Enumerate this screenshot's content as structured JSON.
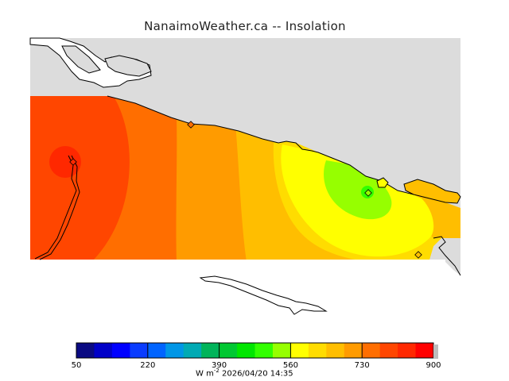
{
  "title": "NanaimoWeather.ca -- Insolation",
  "colorbar": {
    "min": 50,
    "max": 900,
    "tick_labels": [
      "50",
      "220",
      "390",
      "560",
      "730",
      "900"
    ],
    "tick_values": [
      50,
      220,
      390,
      560,
      730,
      900
    ],
    "colors": [
      "#0a0a82",
      "#0000c8",
      "#0000ff",
      "#0a3cff",
      "#0064ff",
      "#0096e6",
      "#00aab4",
      "#00b45a",
      "#00c832",
      "#00e600",
      "#32ff00",
      "#96ff00",
      "#ffff00",
      "#ffdc00",
      "#ffbe00",
      "#ff9b00",
      "#ff6e00",
      "#ff4600",
      "#ff2800",
      "#ff0000"
    ]
  },
  "units": {
    "base": "W m",
    "exponent": "-2",
    "timestamp": "2026/04/20 14:35"
  },
  "colors": {
    "land": "#dcdcdc",
    "water": "#ffffff",
    "coast": "#000000"
  }
}
